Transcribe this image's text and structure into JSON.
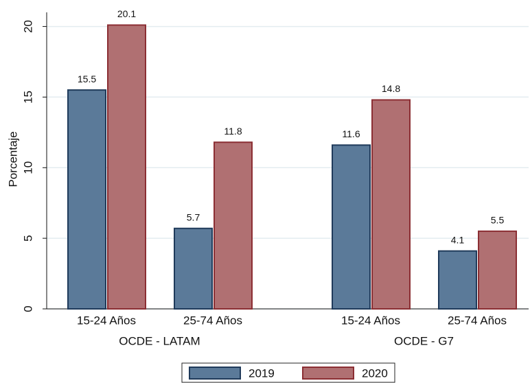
{
  "chart_data": {
    "type": "bar",
    "y_label": "Porcentaje",
    "groups": [
      {
        "label": "OCDE - LATAM",
        "categories": [
          "15-24 Años",
          "25-74 Años"
        ]
      },
      {
        "label": "OCDE - G7",
        "categories": [
          "15-24 Años",
          "25-74 Años"
        ]
      }
    ],
    "series": [
      {
        "name": "2019",
        "color": "#5b7a99",
        "edge": "#1f3a5a",
        "values": [
          15.5,
          5.7,
          11.6,
          4.1
        ]
      },
      {
        "name": "2020",
        "color": "#b07072",
        "edge": "#8b2e33",
        "values": [
          20.1,
          11.8,
          14.8,
          5.5
        ]
      }
    ],
    "ylim": [
      0,
      21
    ],
    "yticks": [
      0,
      5,
      10,
      15,
      20
    ],
    "grid": true,
    "legend": "bottom"
  }
}
